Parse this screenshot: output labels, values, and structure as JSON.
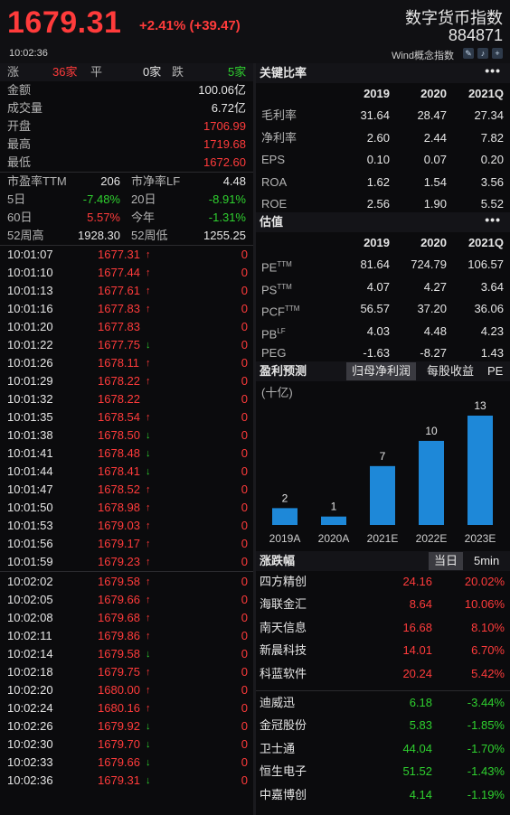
{
  "header": {
    "price": "1679.31",
    "change": "+2.41% (+39.47)",
    "time": "10:02:36",
    "index_name": "数字货币指数",
    "index_code": "884871",
    "tag": "Wind概念指数",
    "icons": [
      "edit-icon",
      "bell-icon",
      "add-icon"
    ]
  },
  "breadth": {
    "up_label": "涨",
    "up_count": "36家",
    "flat_label": "平",
    "flat_count": "0家",
    "down_label": "跌",
    "down_count": "5家"
  },
  "stats": [
    {
      "label": "金额",
      "value": "100.06亿",
      "color": "white"
    },
    {
      "label": "成交量",
      "value": "6.72亿",
      "color": "white"
    },
    {
      "label": "开盘",
      "value": "1706.99",
      "color": "red"
    },
    {
      "label": "最高",
      "value": "1719.68",
      "color": "red"
    },
    {
      "label": "最低",
      "value": "1672.60",
      "color": "red"
    }
  ],
  "valuation": [
    {
      "l1": "市盈率TTM",
      "v1": "206",
      "c1": "white",
      "l2": "市净率LF",
      "v2": "4.48",
      "c2": "white"
    },
    {
      "l1": "5日",
      "v1": "-7.48%",
      "c1": "green",
      "l2": "20日",
      "v2": "-8.91%",
      "c2": "green"
    },
    {
      "l1": "60日",
      "v1": "5.57%",
      "c1": "red",
      "l2": "今年",
      "v2": "-1.31%",
      "c2": "green"
    },
    {
      "l1": "52周高",
      "v1": "1928.30",
      "c1": "white",
      "l2": "52周低",
      "v2": "1255.25",
      "c2": "white"
    }
  ],
  "ticks": [
    {
      "t": "10:01:07",
      "p": "1677.31",
      "d": "up",
      "v": "0"
    },
    {
      "t": "10:01:10",
      "p": "1677.44",
      "d": "up",
      "v": "0"
    },
    {
      "t": "10:01:13",
      "p": "1677.61",
      "d": "up",
      "v": "0"
    },
    {
      "t": "10:01:16",
      "p": "1677.83",
      "d": "up",
      "v": "0"
    },
    {
      "t": "10:01:20",
      "p": "1677.83",
      "d": "",
      "v": "0"
    },
    {
      "t": "10:01:22",
      "p": "1677.75",
      "d": "down",
      "v": "0"
    },
    {
      "t": "10:01:26",
      "p": "1678.11",
      "d": "up",
      "v": "0"
    },
    {
      "t": "10:01:29",
      "p": "1678.22",
      "d": "up",
      "v": "0"
    },
    {
      "t": "10:01:32",
      "p": "1678.22",
      "d": "",
      "v": "0"
    },
    {
      "t": "10:01:35",
      "p": "1678.54",
      "d": "up",
      "v": "0"
    },
    {
      "t": "10:01:38",
      "p": "1678.50",
      "d": "down",
      "v": "0"
    },
    {
      "t": "10:01:41",
      "p": "1678.48",
      "d": "down",
      "v": "0"
    },
    {
      "t": "10:01:44",
      "p": "1678.41",
      "d": "down",
      "v": "0"
    },
    {
      "t": "10:01:47",
      "p": "1678.52",
      "d": "up",
      "v": "0"
    },
    {
      "t": "10:01:50",
      "p": "1678.98",
      "d": "up",
      "v": "0"
    },
    {
      "t": "10:01:53",
      "p": "1679.03",
      "d": "up",
      "v": "0"
    },
    {
      "t": "10:01:56",
      "p": "1679.17",
      "d": "up",
      "v": "0"
    },
    {
      "t": "10:01:59",
      "p": "1679.23",
      "d": "up",
      "v": "0"
    },
    {
      "t": "10:02:02",
      "p": "1679.58",
      "d": "up",
      "v": "0"
    },
    {
      "t": "10:02:05",
      "p": "1679.66",
      "d": "up",
      "v": "0"
    },
    {
      "t": "10:02:08",
      "p": "1679.68",
      "d": "up",
      "v": "0"
    },
    {
      "t": "10:02:11",
      "p": "1679.86",
      "d": "up",
      "v": "0"
    },
    {
      "t": "10:02:14",
      "p": "1679.58",
      "d": "down",
      "v": "0"
    },
    {
      "t": "10:02:18",
      "p": "1679.75",
      "d": "up",
      "v": "0"
    },
    {
      "t": "10:02:20",
      "p": "1680.00",
      "d": "up",
      "v": "0"
    },
    {
      "t": "10:02:24",
      "p": "1680.16",
      "d": "up",
      "v": "0"
    },
    {
      "t": "10:02:26",
      "p": "1679.92",
      "d": "down",
      "v": "0"
    },
    {
      "t": "10:02:30",
      "p": "1679.70",
      "d": "down",
      "v": "0"
    },
    {
      "t": "10:02:33",
      "p": "1679.66",
      "d": "down",
      "v": "0"
    },
    {
      "t": "10:02:36",
      "p": "1679.31",
      "d": "down",
      "v": "0"
    }
  ],
  "ratios": {
    "title": "关键比率",
    "more": "•••",
    "years": [
      "2019",
      "2020",
      "2021Q"
    ],
    "rows": [
      {
        "label": "毛利率",
        "vals": [
          "31.64",
          "28.47",
          "27.34"
        ]
      },
      {
        "label": "净利率",
        "vals": [
          "2.60",
          "2.44",
          "7.82"
        ]
      },
      {
        "label": "EPS",
        "vals": [
          "0.10",
          "0.07",
          "0.20"
        ]
      },
      {
        "label": "ROA",
        "vals": [
          "1.62",
          "1.54",
          "3.56"
        ]
      },
      {
        "label": "ROE",
        "vals": [
          "2.56",
          "1.90",
          "5.52"
        ]
      }
    ]
  },
  "valuation_table": {
    "title": "估值",
    "more": "•••",
    "years": [
      "2019",
      "2020",
      "2021Q"
    ],
    "rows": [
      {
        "label": "PE",
        "sup": "TTM",
        "vals": [
          "81.64",
          "724.79",
          "106.57"
        ]
      },
      {
        "label": "PS",
        "sup": "TTM",
        "vals": [
          "4.07",
          "4.27",
          "3.64"
        ]
      },
      {
        "label": "PCF",
        "sup": "TTM",
        "vals": [
          "56.57",
          "37.20",
          "36.06"
        ]
      },
      {
        "label": "PB",
        "sup": "LF",
        "vals": [
          "4.03",
          "4.48",
          "4.23"
        ]
      },
      {
        "label": "PEG",
        "sup": "",
        "vals": [
          "-1.63",
          "-8.27",
          "1.43"
        ]
      }
    ]
  },
  "forecast": {
    "title": "盈利预测",
    "tabs": [
      "归母净利润",
      "每股收益",
      "PE"
    ],
    "active_tab": 0,
    "unit": "(十亿)"
  },
  "chart_data": {
    "type": "bar",
    "categories": [
      "2019A",
      "2020A",
      "2021E",
      "2022E",
      "2023E"
    ],
    "values": [
      2,
      1,
      7,
      10,
      13
    ],
    "ylabel": "(十亿)",
    "bar_color": "#1e88d8"
  },
  "movers": {
    "title": "涨跌幅",
    "tabs": [
      "当日",
      "5min"
    ],
    "active_tab": 0,
    "gainers": [
      {
        "name": "四方精创",
        "price": "24.16",
        "pct": "20.02%"
      },
      {
        "name": "海联金汇",
        "price": "8.64",
        "pct": "10.06%"
      },
      {
        "name": "南天信息",
        "price": "16.68",
        "pct": "8.10%"
      },
      {
        "name": "新晨科技",
        "price": "14.01",
        "pct": "6.70%"
      },
      {
        "name": "科蓝软件",
        "price": "20.24",
        "pct": "5.42%"
      }
    ],
    "losers": [
      {
        "name": "迪威迅",
        "price": "6.18",
        "pct": "-3.44%"
      },
      {
        "name": "金冠股份",
        "price": "5.83",
        "pct": "-1.85%"
      },
      {
        "name": "卫士通",
        "price": "44.04",
        "pct": "-1.70%"
      },
      {
        "name": "恒生电子",
        "price": "51.52",
        "pct": "-1.43%"
      },
      {
        "name": "中嘉博创",
        "price": "4.14",
        "pct": "-1.19%"
      }
    ]
  },
  "colors": {
    "up": "#ff3b3b",
    "down": "#2fd12f",
    "bg": "#0b0b0d"
  }
}
